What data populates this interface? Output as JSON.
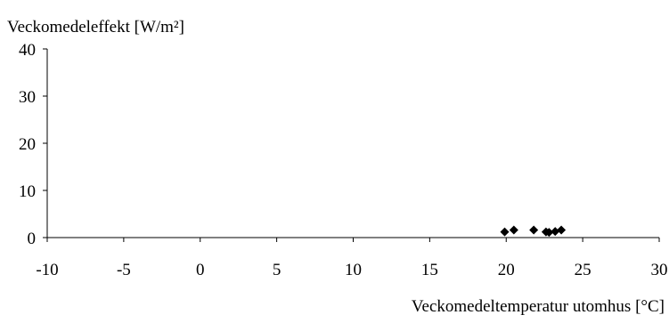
{
  "chart_data": {
    "type": "scatter",
    "title": "",
    "ylabel": "Veckomedeleffekt [W/m²]",
    "xlabel": "Veckomedeltemperatur utomhus [°C]",
    "xlim": [
      -10,
      30
    ],
    "ylim": [
      0,
      40
    ],
    "xticks": [
      -10,
      -5,
      0,
      5,
      10,
      15,
      20,
      25,
      30
    ],
    "yticks": [
      0,
      10,
      20,
      30,
      40
    ],
    "grid": false,
    "marker": "diamond",
    "marker_color": "#000000",
    "series": [
      {
        "points": [
          {
            "x": 19.9,
            "y": 1.2
          },
          {
            "x": 20.5,
            "y": 1.6
          },
          {
            "x": 21.8,
            "y": 1.6
          },
          {
            "x": 22.6,
            "y": 1.2
          },
          {
            "x": 22.8,
            "y": 1.1
          },
          {
            "x": 23.2,
            "y": 1.3
          },
          {
            "x": 23.6,
            "y": 1.6
          }
        ]
      }
    ]
  }
}
